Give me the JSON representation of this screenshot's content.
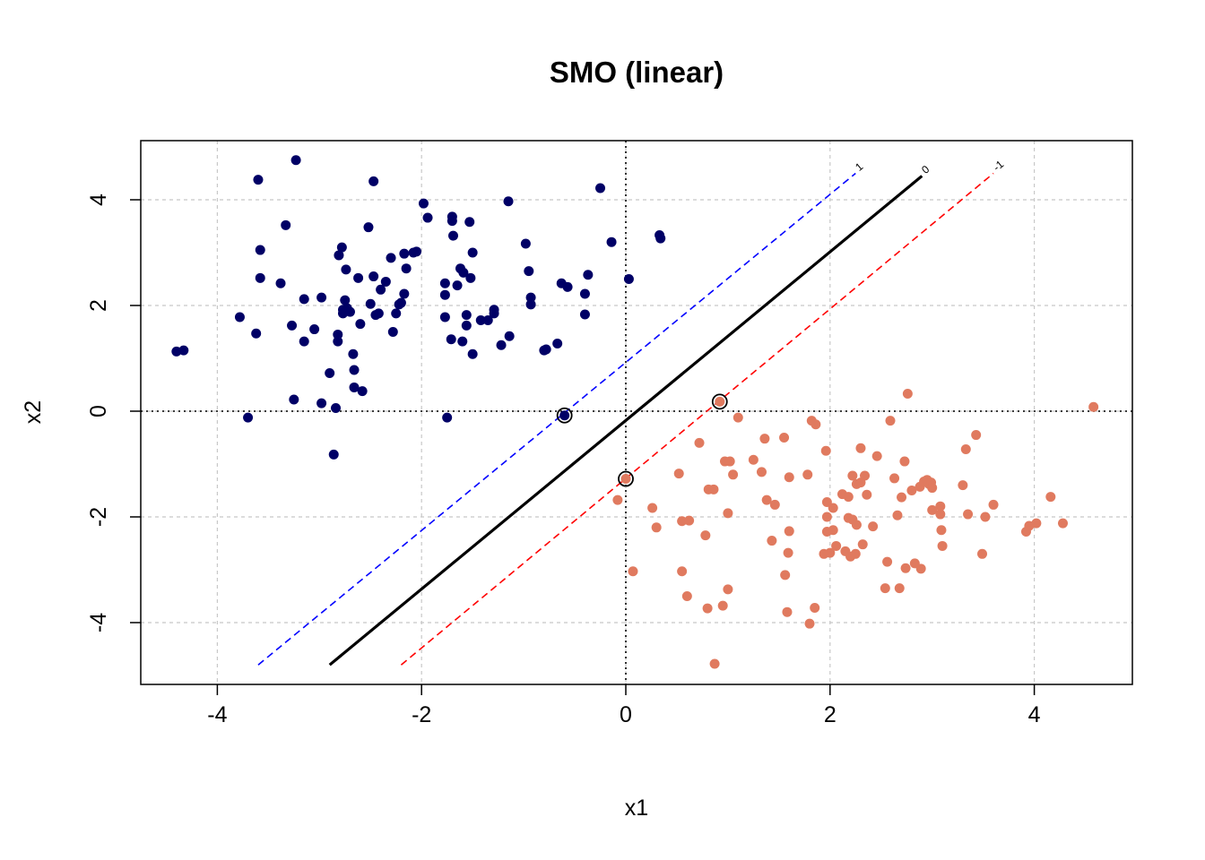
{
  "chart_data": {
    "type": "scatter",
    "title": "SMO (linear)",
    "xlabel": "x1",
    "ylabel": "x2",
    "xlim": [
      -4.8,
      4.8
    ],
    "ylim": [
      -5.2,
      5.1
    ],
    "xticks": [
      -4,
      -2,
      0,
      2,
      4
    ],
    "yticks": [
      -4,
      -2,
      0,
      2,
      4
    ],
    "xtick_labels": [
      "-4",
      "-2",
      "0",
      "2",
      "4"
    ],
    "ytick_labels": [
      "-4",
      "-2",
      "0",
      "2",
      "4"
    ],
    "grid": true,
    "colors": {
      "class1": "#000066",
      "class2": "#e07a5f",
      "decision": "#000000",
      "margin_pos": "#0000ff",
      "margin_neg": "#ff0000",
      "grid": "#c8c8c8"
    },
    "reference_lines": {
      "x": 0,
      "y": 0
    },
    "decision_lines": [
      {
        "label": "1",
        "color": "#0000ff",
        "style": "dashed",
        "x": [
          -3.6,
          2.25
        ],
        "y": [
          -4.8,
          4.5
        ]
      },
      {
        "label": "0",
        "color": "#000000",
        "style": "solid",
        "x": [
          -2.9,
          2.9
        ],
        "y": [
          -4.8,
          4.45
        ]
      },
      {
        "label": "-1",
        "color": "#ff0000",
        "style": "dashed",
        "x": [
          -2.2,
          3.6
        ],
        "y": [
          -4.8,
          4.5
        ]
      }
    ],
    "support_vectors": [
      [
        -0.6,
        -0.08
      ],
      [
        0.92,
        0.18
      ],
      [
        0.0,
        -1.28
      ]
    ],
    "series": [
      {
        "values": [
          [
            -4.4,
            1.13
          ],
          [
            -4.33,
            1.15
          ],
          [
            -3.78,
            1.78
          ],
          [
            -3.7,
            -0.12
          ],
          [
            -3.62,
            1.47
          ],
          [
            -3.6,
            4.38
          ],
          [
            -3.58,
            3.05
          ],
          [
            -3.58,
            2.52
          ],
          [
            -3.38,
            2.42
          ],
          [
            -3.33,
            3.52
          ],
          [
            -3.27,
            1.62
          ],
          [
            -3.25,
            0.22
          ],
          [
            -3.23,
            4.75
          ],
          [
            -3.15,
            2.12
          ],
          [
            -3.15,
            1.32
          ],
          [
            -3.05,
            1.55
          ],
          [
            -2.98,
            0.15
          ],
          [
            -2.98,
            2.15
          ],
          [
            -2.9,
            0.72
          ],
          [
            -2.86,
            -0.82
          ],
          [
            -2.84,
            0.06
          ],
          [
            -2.82,
            1.32
          ],
          [
            -2.82,
            1.45
          ],
          [
            -2.81,
            2.95
          ],
          [
            -2.78,
            3.1
          ],
          [
            -2.77,
            1.85
          ],
          [
            -2.77,
            1.92
          ],
          [
            -2.75,
            2.1
          ],
          [
            -2.74,
            2.68
          ],
          [
            -2.73,
            1.95
          ],
          [
            -2.7,
            1.88
          ],
          [
            -2.67,
            1.08
          ],
          [
            -2.66,
            0.78
          ],
          [
            -2.66,
            0.45
          ],
          [
            -2.62,
            2.52
          ],
          [
            -2.6,
            1.65
          ],
          [
            -2.58,
            0.38
          ],
          [
            -2.52,
            3.48
          ],
          [
            -2.5,
            2.03
          ],
          [
            -2.47,
            4.35
          ],
          [
            -2.47,
            2.55
          ],
          [
            -2.45,
            1.82
          ],
          [
            -2.42,
            1.85
          ],
          [
            -2.4,
            2.3
          ],
          [
            -2.35,
            2.45
          ],
          [
            -2.3,
            2.9
          ],
          [
            -2.28,
            1.5
          ],
          [
            -2.25,
            1.85
          ],
          [
            -2.22,
            2.02
          ],
          [
            -2.2,
            2.05
          ],
          [
            -2.17,
            2.22
          ],
          [
            -2.17,
            2.98
          ],
          [
            -2.15,
            2.7
          ],
          [
            -2.08,
            3.0
          ],
          [
            -2.05,
            3.02
          ],
          [
            -1.98,
            3.93
          ],
          [
            -1.94,
            3.66
          ],
          [
            -1.77,
            2.42
          ],
          [
            -1.77,
            2.2
          ],
          [
            -1.77,
            1.78
          ],
          [
            -1.75,
            -0.12
          ],
          [
            -1.71,
            1.36
          ],
          [
            -1.7,
            3.68
          ],
          [
            -1.7,
            3.6
          ],
          [
            -1.69,
            3.32
          ],
          [
            -1.65,
            2.38
          ],
          [
            -1.62,
            2.7
          ],
          [
            -1.6,
            1.32
          ],
          [
            -1.59,
            2.62
          ],
          [
            -1.56,
            1.82
          ],
          [
            -1.56,
            1.62
          ],
          [
            -1.53,
            3.58
          ],
          [
            -1.52,
            2.52
          ],
          [
            -1.5,
            3.0
          ],
          [
            -1.5,
            1.08
          ],
          [
            -1.42,
            1.72
          ],
          [
            -1.35,
            1.72
          ],
          [
            -1.29,
            1.92
          ],
          [
            -1.29,
            1.85
          ],
          [
            -1.22,
            1.25
          ],
          [
            -1.15,
            3.97
          ],
          [
            -1.14,
            1.42
          ],
          [
            -0.98,
            3.17
          ],
          [
            -0.95,
            2.65
          ],
          [
            -0.93,
            2.15
          ],
          [
            -0.93,
            2.02
          ],
          [
            -0.8,
            1.15
          ],
          [
            -0.78,
            1.17
          ],
          [
            -0.67,
            1.28
          ],
          [
            -0.63,
            2.42
          ],
          [
            -0.57,
            2.35
          ],
          [
            -0.4,
            1.83
          ],
          [
            -0.4,
            2.22
          ],
          [
            -0.37,
            2.58
          ],
          [
            -0.25,
            4.22
          ],
          [
            -0.14,
            3.2
          ],
          [
            0.03,
            2.5
          ],
          [
            0.33,
            3.33
          ],
          [
            0.34,
            3.27
          ],
          [
            -0.6,
            -0.08
          ]
        ]
      },
      {
        "values": [
          [
            -0.08,
            -1.68
          ],
          [
            0.0,
            -1.28
          ],
          [
            0.07,
            -3.03
          ],
          [
            0.26,
            -1.83
          ],
          [
            0.3,
            -2.2
          ],
          [
            0.52,
            -1.18
          ],
          [
            0.55,
            -3.03
          ],
          [
            0.55,
            -2.08
          ],
          [
            0.6,
            -3.5
          ],
          [
            0.62,
            -2.07
          ],
          [
            0.72,
            -0.6
          ],
          [
            0.78,
            -2.35
          ],
          [
            0.8,
            -3.73
          ],
          [
            0.81,
            -1.48
          ],
          [
            0.86,
            -1.48
          ],
          [
            0.87,
            -4.78
          ],
          [
            0.92,
            0.18
          ],
          [
            0.95,
            -3.68
          ],
          [
            0.97,
            -0.95
          ],
          [
            1.0,
            -1.93
          ],
          [
            1.0,
            -3.37
          ],
          [
            1.02,
            -0.95
          ],
          [
            1.05,
            -1.2
          ],
          [
            1.1,
            -0.12
          ],
          [
            1.25,
            -0.92
          ],
          [
            1.33,
            -1.15
          ],
          [
            1.36,
            -0.52
          ],
          [
            1.38,
            -1.68
          ],
          [
            1.43,
            -2.45
          ],
          [
            1.46,
            -1.77
          ],
          [
            1.55,
            -0.5
          ],
          [
            1.56,
            -3.1
          ],
          [
            1.58,
            -3.8
          ],
          [
            1.59,
            -2.68
          ],
          [
            1.6,
            -2.27
          ],
          [
            1.6,
            -1.25
          ],
          [
            1.78,
            -1.2
          ],
          [
            1.8,
            -4.02
          ],
          [
            1.82,
            -0.18
          ],
          [
            1.85,
            -3.72
          ],
          [
            1.86,
            -0.25
          ],
          [
            1.94,
            -2.7
          ],
          [
            1.96,
            -0.75
          ],
          [
            1.97,
            -2.0
          ],
          [
            1.97,
            -2.28
          ],
          [
            1.97,
            -1.72
          ],
          [
            2.0,
            -2.68
          ],
          [
            2.03,
            -2.25
          ],
          [
            2.03,
            -1.83
          ],
          [
            2.06,
            -2.55
          ],
          [
            2.12,
            -1.57
          ],
          [
            2.15,
            -2.65
          ],
          [
            2.18,
            -1.62
          ],
          [
            2.18,
            -2.02
          ],
          [
            2.2,
            -2.75
          ],
          [
            2.22,
            -1.22
          ],
          [
            2.22,
            -2.05
          ],
          [
            2.25,
            -2.7
          ],
          [
            2.26,
            -1.38
          ],
          [
            2.26,
            -2.15
          ],
          [
            2.3,
            -0.7
          ],
          [
            2.3,
            -1.35
          ],
          [
            2.32,
            -2.52
          ],
          [
            2.34,
            -1.22
          ],
          [
            2.36,
            -1.58
          ],
          [
            2.42,
            -2.18
          ],
          [
            2.46,
            -0.85
          ],
          [
            2.54,
            -3.35
          ],
          [
            2.56,
            -2.85
          ],
          [
            2.59,
            -0.18
          ],
          [
            2.63,
            -1.27
          ],
          [
            2.66,
            -1.97
          ],
          [
            2.68,
            -3.35
          ],
          [
            2.7,
            -1.63
          ],
          [
            2.73,
            -0.95
          ],
          [
            2.74,
            -2.97
          ],
          [
            2.76,
            0.33
          ],
          [
            2.8,
            -1.5
          ],
          [
            2.83,
            -2.88
          ],
          [
            2.88,
            -1.43
          ],
          [
            2.89,
            -2.98
          ],
          [
            2.92,
            -1.33
          ],
          [
            2.95,
            -1.3
          ],
          [
            2.97,
            -1.38
          ],
          [
            2.99,
            -1.35
          ],
          [
            3.0,
            -1.87
          ],
          [
            3.0,
            -1.45
          ],
          [
            3.08,
            -1.8
          ],
          [
            3.08,
            -1.95
          ],
          [
            3.09,
            -2.25
          ],
          [
            3.1,
            -2.55
          ],
          [
            3.3,
            -1.4
          ],
          [
            3.33,
            -0.72
          ],
          [
            3.35,
            -1.95
          ],
          [
            3.43,
            -0.45
          ],
          [
            3.49,
            -2.7
          ],
          [
            3.52,
            -2.0
          ],
          [
            3.6,
            -1.77
          ],
          [
            3.92,
            -2.28
          ],
          [
            3.95,
            -2.17
          ],
          [
            4.02,
            -2.12
          ],
          [
            4.16,
            -1.62
          ],
          [
            4.28,
            -2.12
          ],
          [
            4.58,
            0.08
          ]
        ]
      }
    ]
  }
}
